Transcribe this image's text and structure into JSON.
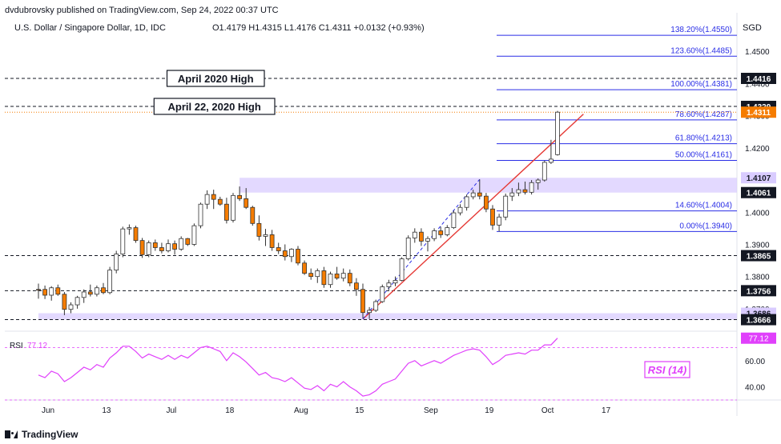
{
  "header": {
    "publisher": "dvdubrovsky published on TradingView.com, Sep 24, 2022 00:37 UTC",
    "symbol": "U.S. Dollar / Singapore Dollar, 1D, IDC",
    "ohlc": "O1.4179  H1.4315  L1.4176  C1.4311  +0.0132 (+0.93%)",
    "currency": "SGD"
  },
  "footer": {
    "brand": "TradingView"
  },
  "colors": {
    "bull": "#ffffff",
    "bear": "#f57c00",
    "wick": "#333333",
    "fib": "#2a2ee6",
    "trend": "#e53935",
    "zone": "#d9ccff",
    "rsi": "#e040fb",
    "last_price": "#f57c00"
  },
  "annotations": {
    "april_2020_high": "April 2020 High",
    "april_22_2020_high": "April 22, 2020 High",
    "rsi_box": "RSI (14)"
  },
  "chart_data": {
    "type": "candlestick",
    "title": "U.S. Dollar / Singapore Dollar, 1D, IDC",
    "price_axis": {
      "min": 1.364,
      "max": 1.461,
      "ticks": [
        1.37,
        1.38,
        1.39,
        1.4,
        1.41,
        1.42,
        1.43,
        1.44,
        1.45
      ]
    },
    "x_labels": [
      {
        "day": 0,
        "label": "Jun"
      },
      {
        "day": 9,
        "label": "13"
      },
      {
        "day": 19,
        "label": "Jul"
      },
      {
        "day": 28,
        "label": "18"
      },
      {
        "day": 39,
        "label": "Aug"
      },
      {
        "day": 48,
        "label": "15"
      },
      {
        "day": 59,
        "label": "Sep"
      },
      {
        "day": 68,
        "label": "19"
      },
      {
        "day": 77,
        "label": "Oct"
      },
      {
        "day": 86,
        "label": "17"
      }
    ],
    "candles": [
      {
        "o": 1.376,
        "h": 1.3778,
        "l": 1.3731,
        "c": 1.3758
      },
      {
        "o": 1.376,
        "h": 1.3772,
        "l": 1.373,
        "c": 1.3742
      },
      {
        "o": 1.3742,
        "h": 1.377,
        "l": 1.3725,
        "c": 1.3765
      },
      {
        "o": 1.3765,
        "h": 1.3775,
        "l": 1.374,
        "c": 1.3745
      },
      {
        "o": 1.3745,
        "h": 1.3752,
        "l": 1.368,
        "c": 1.3698
      },
      {
        "o": 1.3698,
        "h": 1.372,
        "l": 1.3686,
        "c": 1.3712
      },
      {
        "o": 1.3712,
        "h": 1.374,
        "l": 1.37,
        "c": 1.3735
      },
      {
        "o": 1.3735,
        "h": 1.376,
        "l": 1.3718,
        "c": 1.3752
      },
      {
        "o": 1.3752,
        "h": 1.3775,
        "l": 1.3738,
        "c": 1.3745
      },
      {
        "o": 1.3745,
        "h": 1.3772,
        "l": 1.3738,
        "c": 1.3765
      },
      {
        "o": 1.3765,
        "h": 1.378,
        "l": 1.3745,
        "c": 1.375
      },
      {
        "o": 1.375,
        "h": 1.383,
        "l": 1.3745,
        "c": 1.382
      },
      {
        "o": 1.382,
        "h": 1.388,
        "l": 1.381,
        "c": 1.387
      },
      {
        "o": 1.387,
        "h": 1.3955,
        "l": 1.386,
        "c": 1.3948
      },
      {
        "o": 1.3948,
        "h": 1.3962,
        "l": 1.393,
        "c": 1.3952
      },
      {
        "o": 1.3952,
        "h": 1.3958,
        "l": 1.3905,
        "c": 1.3912
      },
      {
        "o": 1.3912,
        "h": 1.392,
        "l": 1.3858,
        "c": 1.3868
      },
      {
        "o": 1.3868,
        "h": 1.3912,
        "l": 1.386,
        "c": 1.3905
      },
      {
        "o": 1.3905,
        "h": 1.3915,
        "l": 1.388,
        "c": 1.389
      },
      {
        "o": 1.389,
        "h": 1.3905,
        "l": 1.3872,
        "c": 1.388
      },
      {
        "o": 1.388,
        "h": 1.3915,
        "l": 1.3875,
        "c": 1.3902
      },
      {
        "o": 1.3902,
        "h": 1.3912,
        "l": 1.3868,
        "c": 1.3885
      },
      {
        "o": 1.3885,
        "h": 1.3925,
        "l": 1.388,
        "c": 1.3918
      },
      {
        "o": 1.3918,
        "h": 1.392,
        "l": 1.3895,
        "c": 1.39
      },
      {
        "o": 1.39,
        "h": 1.3965,
        "l": 1.3895,
        "c": 1.3958
      },
      {
        "o": 1.3958,
        "h": 1.403,
        "l": 1.395,
        "c": 1.4025
      },
      {
        "o": 1.4025,
        "h": 1.4068,
        "l": 1.401,
        "c": 1.4055
      },
      {
        "o": 1.4055,
        "h": 1.407,
        "l": 1.401,
        "c": 1.404
      },
      {
        "o": 1.404,
        "h": 1.4048,
        "l": 1.402,
        "c": 1.4025
      },
      {
        "o": 1.4025,
        "h": 1.4045,
        "l": 1.3965,
        "c": 1.3975
      },
      {
        "o": 1.3975,
        "h": 1.406,
        "l": 1.3968,
        "c": 1.4052
      },
      {
        "o": 1.4052,
        "h": 1.408,
        "l": 1.4035,
        "c": 1.4042
      },
      {
        "o": 1.4042,
        "h": 1.4075,
        "l": 1.401,
        "c": 1.4015
      },
      {
        "o": 1.4015,
        "h": 1.402,
        "l": 1.3958,
        "c": 1.3965
      },
      {
        "o": 1.3965,
        "h": 1.399,
        "l": 1.3912,
        "c": 1.3925
      },
      {
        "o": 1.3925,
        "h": 1.3948,
        "l": 1.3895,
        "c": 1.393
      },
      {
        "o": 1.393,
        "h": 1.3945,
        "l": 1.388,
        "c": 1.389
      },
      {
        "o": 1.389,
        "h": 1.3905,
        "l": 1.387,
        "c": 1.388
      },
      {
        "o": 1.388,
        "h": 1.39,
        "l": 1.385,
        "c": 1.3862
      },
      {
        "o": 1.3862,
        "h": 1.3888,
        "l": 1.3845,
        "c": 1.3885
      },
      {
        "o": 1.3885,
        "h": 1.3895,
        "l": 1.3835,
        "c": 1.3842
      },
      {
        "o": 1.3842,
        "h": 1.385,
        "l": 1.3805,
        "c": 1.381
      },
      {
        "o": 1.381,
        "h": 1.3825,
        "l": 1.379,
        "c": 1.38
      },
      {
        "o": 1.38,
        "h": 1.3825,
        "l": 1.378,
        "c": 1.3818
      },
      {
        "o": 1.3818,
        "h": 1.383,
        "l": 1.3765,
        "c": 1.3775
      },
      {
        "o": 1.3775,
        "h": 1.3815,
        "l": 1.3765,
        "c": 1.3808
      },
      {
        "o": 1.3808,
        "h": 1.383,
        "l": 1.379,
        "c": 1.3795
      },
      {
        "o": 1.3795,
        "h": 1.3825,
        "l": 1.3785,
        "c": 1.381
      },
      {
        "o": 1.381,
        "h": 1.3822,
        "l": 1.377,
        "c": 1.378
      },
      {
        "o": 1.378,
        "h": 1.3795,
        "l": 1.374,
        "c": 1.376
      },
      {
        "o": 1.376,
        "h": 1.3778,
        "l": 1.367,
        "c": 1.3688
      },
      {
        "o": 1.3688,
        "h": 1.3705,
        "l": 1.3668,
        "c": 1.3695
      },
      {
        "o": 1.3695,
        "h": 1.3728,
        "l": 1.369,
        "c": 1.3722
      },
      {
        "o": 1.3722,
        "h": 1.3775,
        "l": 1.3718,
        "c": 1.3768
      },
      {
        "o": 1.3768,
        "h": 1.379,
        "l": 1.3758,
        "c": 1.378
      },
      {
        "o": 1.378,
        "h": 1.38,
        "l": 1.377,
        "c": 1.3788
      },
      {
        "o": 1.3788,
        "h": 1.386,
        "l": 1.3785,
        "c": 1.3855
      },
      {
        "o": 1.3855,
        "h": 1.3928,
        "l": 1.385,
        "c": 1.392
      },
      {
        "o": 1.392,
        "h": 1.395,
        "l": 1.3905,
        "c": 1.3938
      },
      {
        "o": 1.3938,
        "h": 1.395,
        "l": 1.3895,
        "c": 1.391
      },
      {
        "o": 1.391,
        "h": 1.3925,
        "l": 1.3878,
        "c": 1.3918
      },
      {
        "o": 1.3918,
        "h": 1.395,
        "l": 1.391,
        "c": 1.3942
      },
      {
        "o": 1.3942,
        "h": 1.3955,
        "l": 1.392,
        "c": 1.393
      },
      {
        "o": 1.393,
        "h": 1.396,
        "l": 1.3925,
        "c": 1.3952
      },
      {
        "o": 1.3952,
        "h": 1.4005,
        "l": 1.3948,
        "c": 1.3998
      },
      {
        "o": 1.3998,
        "h": 1.4025,
        "l": 1.399,
        "c": 1.4015
      },
      {
        "o": 1.4015,
        "h": 1.4055,
        "l": 1.4005,
        "c": 1.4048
      },
      {
        "o": 1.4048,
        "h": 1.407,
        "l": 1.404,
        "c": 1.406
      },
      {
        "o": 1.406,
        "h": 1.4102,
        "l": 1.404,
        "c": 1.405
      },
      {
        "o": 1.405,
        "h": 1.406,
        "l": 1.4,
        "c": 1.401
      },
      {
        "o": 1.401,
        "h": 1.4022,
        "l": 1.3945,
        "c": 1.396
      },
      {
        "o": 1.396,
        "h": 1.3995,
        "l": 1.394,
        "c": 1.3985
      },
      {
        "o": 1.3985,
        "h": 1.4058,
        "l": 1.3975,
        "c": 1.405
      },
      {
        "o": 1.405,
        "h": 1.4075,
        "l": 1.4035,
        "c": 1.406
      },
      {
        "o": 1.406,
        "h": 1.4092,
        "l": 1.405,
        "c": 1.407
      },
      {
        "o": 1.407,
        "h": 1.4095,
        "l": 1.4055,
        "c": 1.4062
      },
      {
        "o": 1.4062,
        "h": 1.41,
        "l": 1.4055,
        "c": 1.4092
      },
      {
        "o": 1.4092,
        "h": 1.4105,
        "l": 1.407,
        "c": 1.41
      },
      {
        "o": 1.41,
        "h": 1.416,
        "l": 1.4095,
        "c": 1.4155
      },
      {
        "o": 1.4155,
        "h": 1.4225,
        "l": 1.415,
        "c": 1.4165
      },
      {
        "o": 1.4179,
        "h": 1.4315,
        "l": 1.4176,
        "c": 1.4311
      }
    ],
    "zones": [
      {
        "from_day": 0,
        "to_day": 85,
        "low": 1.3666,
        "high": 1.3686
      },
      {
        "from_day": 31,
        "to_day": 85,
        "low": 1.4061,
        "high": 1.4107
      }
    ],
    "horizontal_levels": [
      {
        "price": 1.4416,
        "label": "1.4416",
        "style": "black"
      },
      {
        "price": 1.4329,
        "label": "1.4329",
        "style": "black"
      },
      {
        "price": 1.3865,
        "label": "1.3865",
        "style": "black"
      },
      {
        "price": 1.3756,
        "label": "1.3756",
        "style": "black"
      },
      {
        "price": 1.3686,
        "label": "1.3686",
        "style": "purple"
      },
      {
        "price": 1.3666,
        "label": "1.3666",
        "style": "black"
      },
      {
        "price": 1.4107,
        "label": "1.4107",
        "style": "purple"
      },
      {
        "price": 1.4061,
        "label": "1.4061",
        "style": "black"
      },
      {
        "price": 1.4311,
        "label": "1.4311",
        "style": "orange"
      }
    ],
    "fibonacci": [
      {
        "price": 1.455,
        "label": "138.20%(1.4550)"
      },
      {
        "price": 1.4485,
        "label": "123.60%(1.4485)"
      },
      {
        "price": 1.4381,
        "label": "100.00%(1.4381)"
      },
      {
        "price": 1.4287,
        "label": "78.60%(1.4287)"
      },
      {
        "price": 1.4213,
        "label": "61.80%(1.4213)"
      },
      {
        "price": 1.4161,
        "label": "50.00%(1.4161)"
      },
      {
        "price": 1.4004,
        "label": "14.60%(1.4004)"
      },
      {
        "price": 1.394,
        "label": "0.00%(1.3940)"
      }
    ],
    "trendline": {
      "from": {
        "day": 50,
        "price": 1.3668
      },
      "to": {
        "day": 84,
        "price": 1.4305
      }
    },
    "dashed_trend": {
      "from": {
        "day": 50,
        "price": 1.3668
      },
      "to": {
        "day": 68,
        "price": 1.4102
      }
    },
    "rsi": {
      "label": "RSI",
      "value": "77.12",
      "axis": {
        "min": 30,
        "max": 80,
        "ticks": [
          "60.00",
          "40.00"
        ]
      },
      "bands": [
        70,
        30
      ],
      "values": [
        49,
        47,
        52,
        50,
        44,
        47,
        51,
        55,
        53,
        57,
        55,
        62,
        66,
        71,
        71,
        67,
        62,
        65,
        63,
        61,
        64,
        61,
        64,
        62,
        66,
        70,
        71,
        69,
        67,
        60,
        66,
        63,
        59,
        54,
        49,
        51,
        47,
        46,
        44,
        47,
        43,
        39,
        38,
        41,
        37,
        42,
        40,
        44,
        40,
        37,
        33,
        34,
        37,
        42,
        44,
        46,
        52,
        58,
        60,
        56,
        58,
        60,
        58,
        61,
        64,
        66,
        68,
        69,
        68,
        63,
        57,
        60,
        64,
        65,
        66,
        65,
        68,
        68,
        72,
        72,
        77.12
      ]
    }
  }
}
